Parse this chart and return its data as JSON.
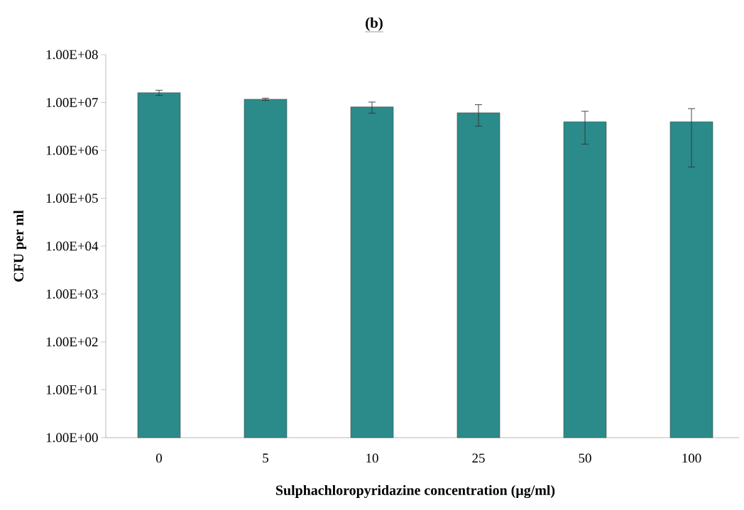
{
  "chart_data": {
    "type": "bar",
    "title": "(b)",
    "xlabel": "Sulphachloropyridazine concentration (µg/ml)",
    "ylabel": "CFU per ml",
    "categories": [
      "0",
      "5",
      "10",
      "25",
      "50",
      "100"
    ],
    "values": [
      16000000,
      11700000,
      8100000,
      6100000,
      3950000,
      3950000
    ],
    "errors": [
      2000000,
      600000,
      2100000,
      2900000,
      2600000,
      3500000
    ],
    "color": "#2b8a8a",
    "log": "y",
    "ylim": [
      1,
      100000000
    ],
    "yticks": [
      {
        "value": 1,
        "label": "1.00E+00"
      },
      {
        "value": 10,
        "label": "1.00E+01"
      },
      {
        "value": 100,
        "label": "1.00E+02"
      },
      {
        "value": 1000,
        "label": "1.00E+03"
      },
      {
        "value": 10000,
        "label": "1.00E+04"
      },
      {
        "value": 100000,
        "label": "1.00E+05"
      },
      {
        "value": 1000000,
        "label": "1.00E+06"
      },
      {
        "value": 10000000,
        "label": "1.00E+07"
      },
      {
        "value": 100000000,
        "label": "1.00E+08"
      }
    ],
    "grid": false
  }
}
